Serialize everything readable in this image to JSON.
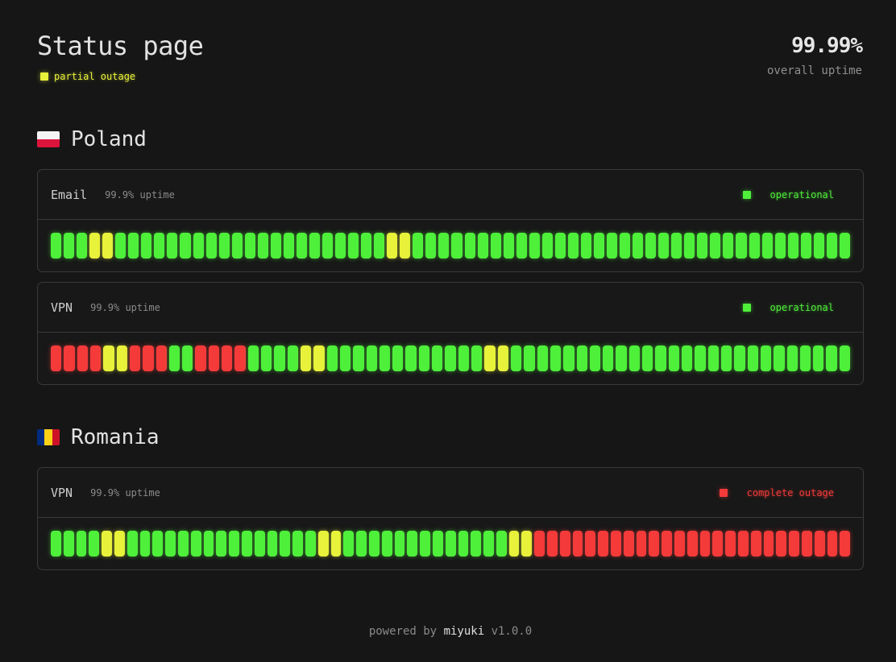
{
  "header": {
    "title": "Status page",
    "overall_status": {
      "label": "partial outage",
      "level": "yellow"
    },
    "overall_uptime": {
      "value": "99.99%",
      "label": "overall uptime"
    }
  },
  "colors": {
    "green": "#4ef03a",
    "yellow": "#e8f23a",
    "red": "#f53a3a",
    "background": "#161616"
  },
  "regions": [
    {
      "name": "Poland",
      "flag_icon": "poland-flag-icon",
      "services": [
        {
          "name": "Email",
          "uptime": "99.9% uptime",
          "status": {
            "label": "operational",
            "level": "green"
          },
          "history": "GGGYYGGGGGGGGGGGGGGGGGGGGGYYGGGGGGGGGGGGGGGGGGGGGGGGGGGGGGGGGG"
        },
        {
          "name": "VPN",
          "uptime": "99.9% uptime",
          "status": {
            "label": "operational",
            "level": "green"
          },
          "history": "RRRRYYRRRGGRRRRGGGGYYGGGGGGGGGGGGYYGGGGGGGGGGGGGGGGGGGGGGGGGG"
        }
      ]
    },
    {
      "name": "Romania",
      "flag_icon": "romania-flag-icon",
      "services": [
        {
          "name": "VPN",
          "uptime": "99.9% uptime",
          "status": {
            "label": "complete outage",
            "level": "red"
          },
          "history": "GGGGYYGGGGGGGGGGGGGGGYYGGGGGGGGGGGGGYYRRRRRRRRRRRRRRRRRRRRRRRRR"
        }
      ]
    }
  ],
  "footer": {
    "prefix": "powered by",
    "brand": "miyuki",
    "version": "v1.0.0"
  }
}
